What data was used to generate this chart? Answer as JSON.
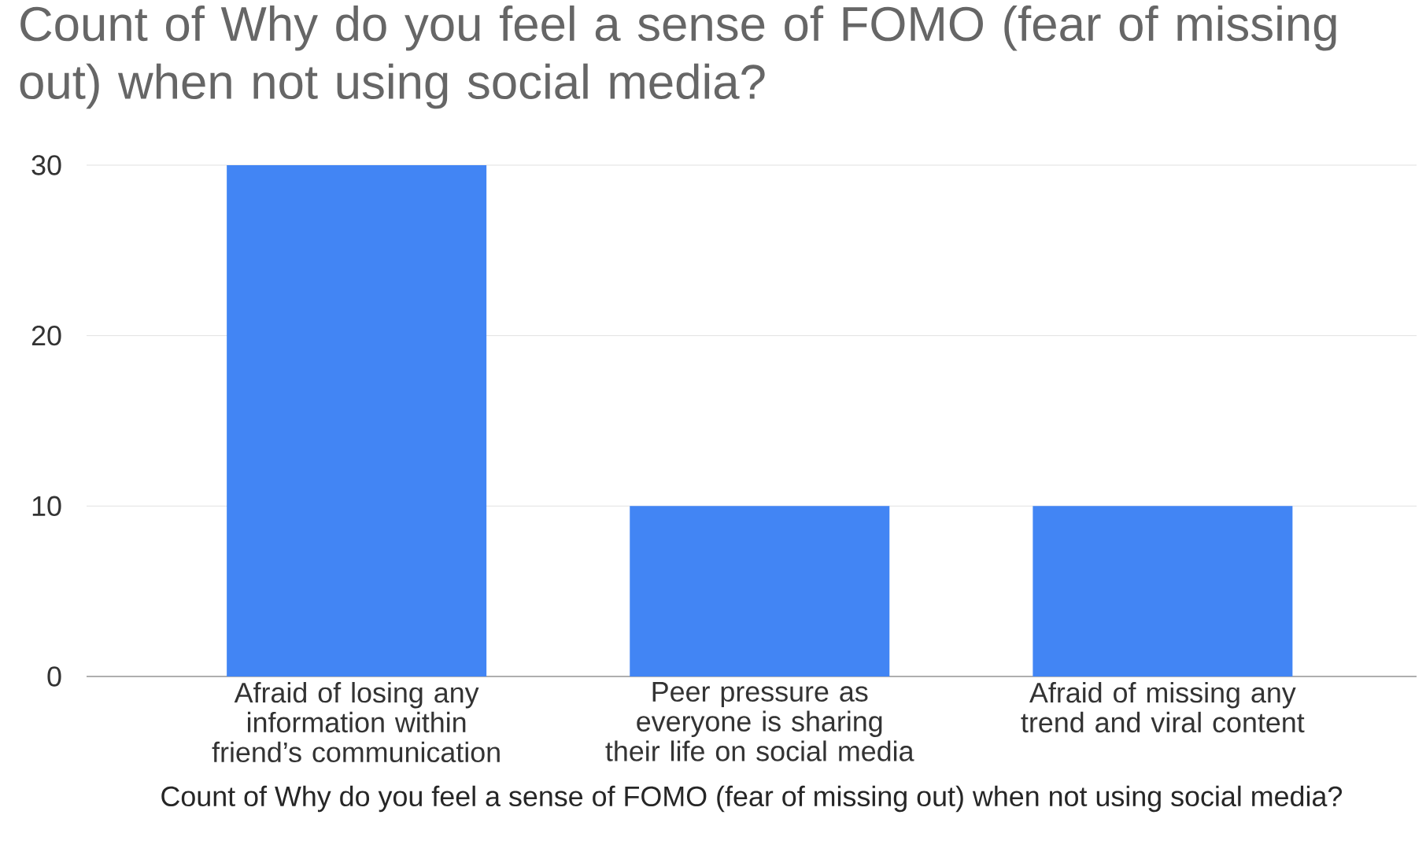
{
  "chart_data": {
    "type": "bar",
    "title": "Count of Why do you feel a sense of FOMO (fear of missing out) when not using social media?",
    "xlabel": "Count of Why do you feel a sense of FOMO (fear of missing out) when not using social media?",
    "categories": [
      "Afraid of losing any information within friend’s communication",
      "Peer pressure as everyone is sharing their life on social media",
      "Afraid of missing any trend and viral content"
    ],
    "values": [
      30,
      10,
      10
    ],
    "color": "#4285f4",
    "ylim": [
      0,
      30
    ],
    "yticks": [
      0,
      10,
      20,
      30
    ],
    "grid": "y"
  }
}
